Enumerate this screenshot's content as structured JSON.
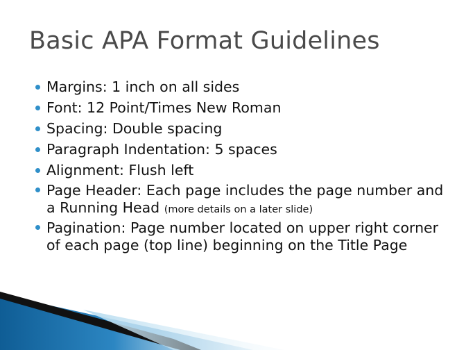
{
  "slide": {
    "title": "Basic APA Format Guidelines",
    "bullets": [
      {
        "text": "Margins:   1 inch on all sides"
      },
      {
        "text": "Font:  12 Point/Times New Roman"
      },
      {
        "text": "Spacing:  Double spacing"
      },
      {
        "text": "Paragraph Indentation:  5 spaces"
      },
      {
        "text": "Alignment:  Flush left"
      },
      {
        "text": "Page Header: Each page includes the page number and a Running Head ",
        "note": "(more details on a later slide)"
      },
      {
        "text": "Pagination:  Page number located on upper right corner of each page (top line) beginning on the Title Page"
      }
    ]
  },
  "colors": {
    "bullet": "#2f8fc9",
    "title": "#4a4a4a",
    "accent_blue": "#1f6fa8"
  }
}
